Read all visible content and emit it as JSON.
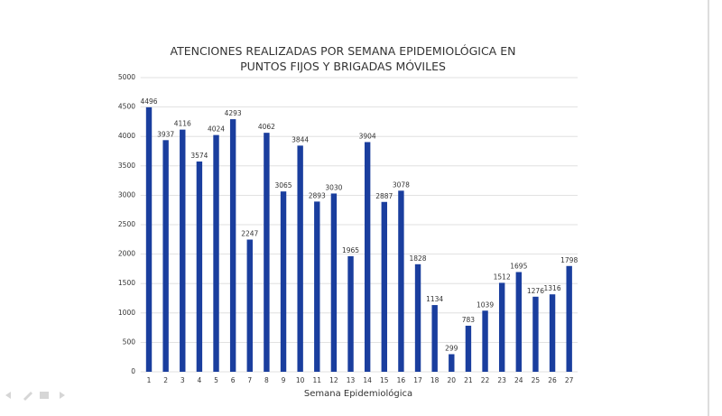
{
  "chart_data": {
    "type": "bar",
    "title": "ATENCIONES REALIZADAS POR SEMANA EPIDEMIOLÓGICA EN PUNTOS FIJOS Y BRIGADAS MÓVILES",
    "x_label": "Semana Epidemiológica",
    "categories": [
      "1",
      "2",
      "3",
      "4",
      "5",
      "6",
      "7",
      "8",
      "9",
      "10",
      "11",
      "12",
      "13",
      "14",
      "15",
      "16",
      "17",
      "18",
      "20",
      "21",
      "22",
      "23",
      "24",
      "25",
      "26",
      "27"
    ],
    "values": [
      4496,
      3937,
      4116,
      3574,
      4024,
      4293,
      2247,
      4062,
      3065,
      3844,
      2893,
      3030,
      1965,
      3904,
      2887,
      3078,
      1828,
      1134,
      299,
      783,
      1039,
      1512,
      1695,
      1276,
      1316,
      1798
    ],
    "color": "#1a3e9e",
    "ylim": [
      0,
      5000
    ],
    "yticks": [
      0,
      500,
      1000,
      1500,
      2000,
      2500,
      3000,
      3500,
      4000,
      4500,
      5000
    ],
    "grid": true
  }
}
